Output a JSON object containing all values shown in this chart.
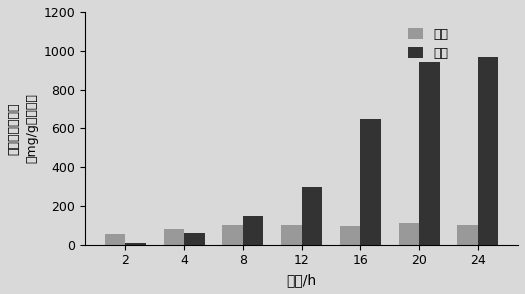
{
  "time_points": [
    2,
    4,
    8,
    12,
    16,
    20,
    24
  ],
  "intracellular": [
    55,
    80,
    100,
    100,
    95,
    110,
    100
  ],
  "extracellular": [
    10,
    60,
    150,
    300,
    650,
    940,
    970
  ],
  "intracellular_color": "#999999",
  "extracellular_color": "#333333",
  "ylabel_line1": "四氢嘧啶合成量",
  "ylabel_line2": "（mg/g干细胞）",
  "xlabel": "时间/h",
  "legend_intracellular": "胞内",
  "legend_extracellular": "胞外",
  "ylim": [
    0,
    1200
  ],
  "yticks": [
    0,
    200,
    400,
    600,
    800,
    1000,
    1200
  ],
  "background_color": "#d9d9d9",
  "bar_width": 0.35
}
